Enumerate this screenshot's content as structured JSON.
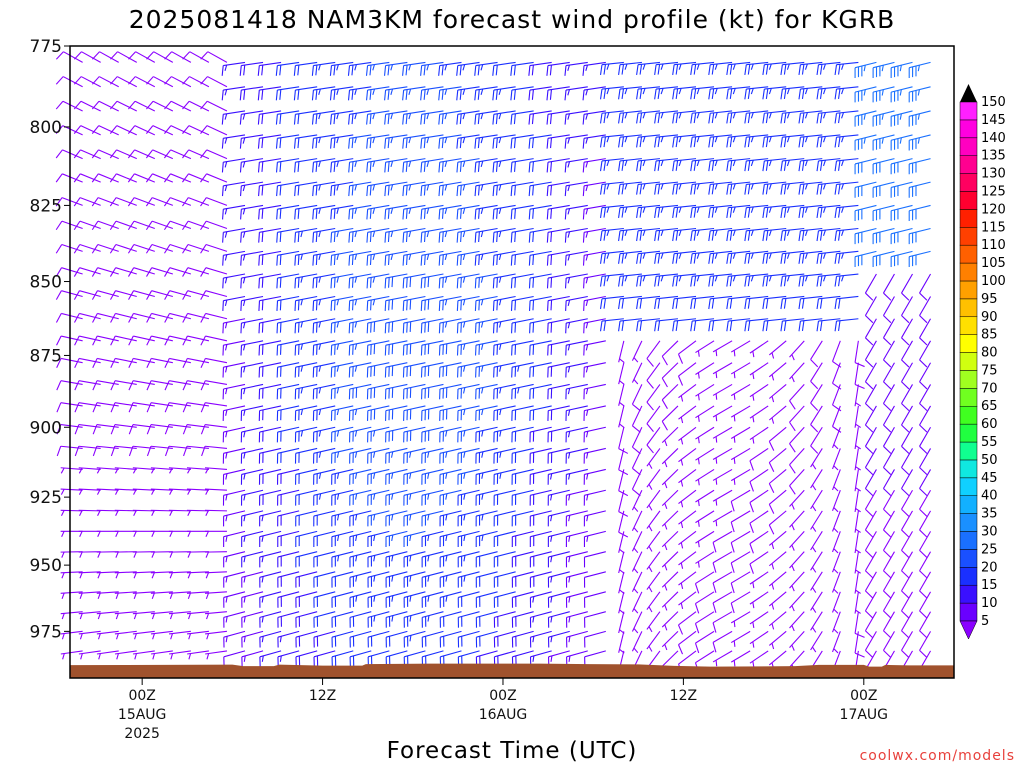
{
  "chart_data": {
    "type": "wind-barb-time-height",
    "title": "2025081418 NAM3KM forecast wind profile (kt) for KGRB",
    "xlabel": "Forecast Time (UTC)",
    "ylabel": "",
    "y_axis": {
      "reversed": true,
      "ylim": [
        775,
        993
      ],
      "ticks": [
        775,
        800,
        825,
        850,
        875,
        900,
        925,
        950,
        975
      ]
    },
    "x_axis": {
      "range_hours": [
        -4,
        45
      ],
      "ticks": [
        {
          "hour": 0,
          "label": "00Z",
          "sub1": "15AUG",
          "sub2": "2025"
        },
        {
          "hour": 10,
          "label": "12Z",
          "sub1": "",
          "sub2": ""
        },
        {
          "hour": 20,
          "label": "00Z",
          "sub1": "16AUG",
          "sub2": ""
        },
        {
          "hour": 30,
          "label": "12Z",
          "sub1": "",
          "sub2": ""
        },
        {
          "hour": 40,
          "label": "00Z",
          "sub1": "17AUG",
          "sub2": ""
        }
      ]
    },
    "colorbar": {
      "levels": [
        5,
        10,
        15,
        20,
        25,
        30,
        35,
        40,
        45,
        50,
        55,
        60,
        65,
        70,
        75,
        80,
        85,
        90,
        95,
        100,
        105,
        110,
        115,
        120,
        125,
        130,
        135,
        140,
        145,
        150
      ],
      "colors": [
        "#8a00ff",
        "#6a00ff",
        "#3a10ff",
        "#1a30ff",
        "#1a50ff",
        "#1a70ff",
        "#1a90ff",
        "#12b0ff",
        "#10d0ff",
        "#10e8e0",
        "#10ff90",
        "#20ff40",
        "#40ff20",
        "#70ff20",
        "#a0ff20",
        "#d0ff10",
        "#ffff00",
        "#ffe000",
        "#ffc000",
        "#ffa000",
        "#ff8000",
        "#ff6000",
        "#ff4000",
        "#ff2000",
        "#ff0030",
        "#ff0060",
        "#ff0090",
        "#ff00c0",
        "#ff00e0",
        "#ff20ff"
      ],
      "top_color": "#000000",
      "bottom_color": "#8a00ff"
    },
    "ground_color": "#a0522d"
  },
  "credit": "coolwx.com/models"
}
